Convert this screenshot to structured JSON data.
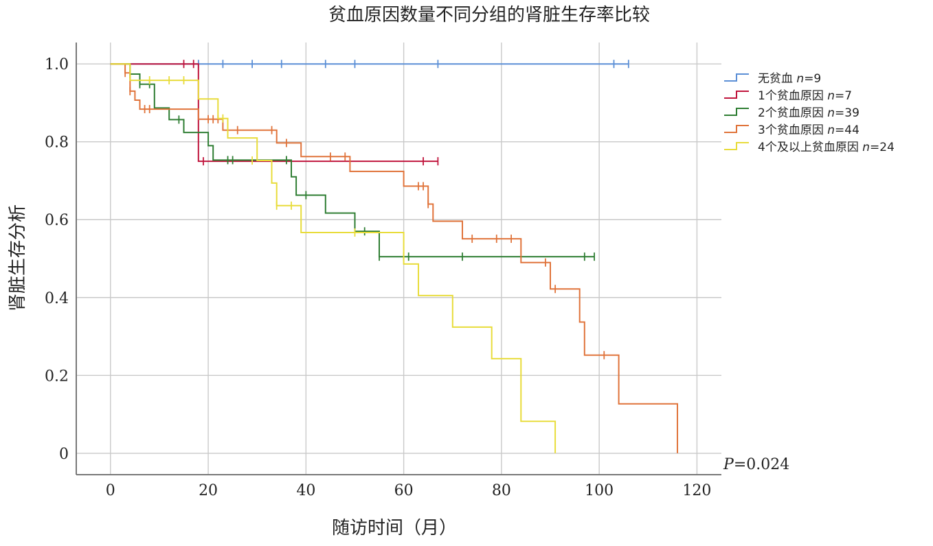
{
  "chart_data": {
    "type": "line",
    "subtype": "kaplan-meier",
    "title": "贫血原因数量不同分组的肾脏生存率比较",
    "xlabel": "随访时间（月）",
    "ylabel": "肾脏生存分析",
    "xlim": [
      -7,
      125
    ],
    "ylim": [
      -0.055,
      1.055
    ],
    "xticks": [
      0,
      20,
      40,
      60,
      80,
      100,
      120
    ],
    "xtick_labels": [
      "0",
      "20",
      "40",
      "60",
      "80",
      "100",
      "120"
    ],
    "yticks": [
      1.0,
      0.8,
      0.6,
      0.4,
      0.2,
      0
    ],
    "ytick_labels": [
      "1.0",
      "0.8",
      "0.6",
      "0.4",
      "0.2",
      "0"
    ],
    "grid": true,
    "legend_position": "right",
    "annotation": {
      "italic": "P",
      "text": "=0.024"
    },
    "series": [
      {
        "name": "无贫血",
        "n_label": "n",
        "n_value": "=9",
        "color": "#5b8fd6",
        "steps": [
          [
            0,
            1.0
          ],
          [
            106,
            1.0
          ]
        ],
        "censors": [
          [
            18,
            1.0
          ],
          [
            23,
            1.0
          ],
          [
            29,
            1.0
          ],
          [
            35,
            1.0
          ],
          [
            44,
            1.0
          ],
          [
            50,
            1.0
          ],
          [
            67,
            1.0
          ],
          [
            103,
            1.0
          ],
          [
            106,
            1.0
          ]
        ]
      },
      {
        "name": "1个贫血原因",
        "n_label": "n",
        "n_value": "=7",
        "color": "#c0143c",
        "steps": [
          [
            0,
            1.0
          ],
          [
            18,
            1.0
          ],
          [
            18,
            0.75
          ],
          [
            67,
            0.75
          ]
        ],
        "censors": [
          [
            15,
            1.0
          ],
          [
            17,
            1.0
          ],
          [
            19,
            0.75
          ],
          [
            64,
            0.75
          ],
          [
            67,
            0.75
          ]
        ]
      },
      {
        "name": "2个贫血原因",
        "n_label": "n",
        "n_value": "=39",
        "color": "#2e7d32",
        "steps": [
          [
            0,
            1.0
          ],
          [
            4,
            1.0
          ],
          [
            4,
            0.974
          ],
          [
            6,
            0.974
          ],
          [
            6,
            0.948
          ],
          [
            9,
            0.948
          ],
          [
            9,
            0.887
          ],
          [
            12,
            0.887
          ],
          [
            12,
            0.857
          ],
          [
            15,
            0.857
          ],
          [
            15,
            0.824
          ],
          [
            20,
            0.824
          ],
          [
            20,
            0.79
          ],
          [
            21,
            0.79
          ],
          [
            21,
            0.753
          ],
          [
            37,
            0.753
          ],
          [
            37,
            0.71
          ],
          [
            38,
            0.71
          ],
          [
            38,
            0.663
          ],
          [
            44,
            0.663
          ],
          [
            44,
            0.617
          ],
          [
            50,
            0.617
          ],
          [
            50,
            0.57
          ],
          [
            55,
            0.57
          ],
          [
            55,
            0.505
          ],
          [
            99,
            0.505
          ]
        ],
        "censors": [
          [
            4,
            0.974
          ],
          [
            6,
            0.948
          ],
          [
            8,
            0.948
          ],
          [
            14,
            0.857
          ],
          [
            24,
            0.753
          ],
          [
            25,
            0.753
          ],
          [
            36,
            0.753
          ],
          [
            40,
            0.663
          ],
          [
            52,
            0.57
          ],
          [
            55,
            0.505
          ],
          [
            60,
            0.505
          ],
          [
            61,
            0.505
          ],
          [
            72,
            0.505
          ],
          [
            97,
            0.505
          ],
          [
            99,
            0.505
          ]
        ]
      },
      {
        "name": "3个贫血原因",
        "n_label": "n",
        "n_value": "=44",
        "color": "#e0733a",
        "steps": [
          [
            0,
            1.0
          ],
          [
            3,
            1.0
          ],
          [
            3,
            0.977
          ],
          [
            4,
            0.977
          ],
          [
            4,
            0.93
          ],
          [
            5,
            0.93
          ],
          [
            5,
            0.907
          ],
          [
            6,
            0.907
          ],
          [
            6,
            0.884
          ],
          [
            18,
            0.884
          ],
          [
            18,
            0.858
          ],
          [
            23,
            0.858
          ],
          [
            23,
            0.83
          ],
          [
            34,
            0.83
          ],
          [
            34,
            0.797
          ],
          [
            39,
            0.797
          ],
          [
            39,
            0.762
          ],
          [
            49,
            0.762
          ],
          [
            49,
            0.724
          ],
          [
            60,
            0.724
          ],
          [
            60,
            0.686
          ],
          [
            65,
            0.686
          ],
          [
            65,
            0.64
          ],
          [
            66,
            0.64
          ],
          [
            66,
            0.596
          ],
          [
            72,
            0.596
          ],
          [
            72,
            0.551
          ],
          [
            84,
            0.551
          ],
          [
            84,
            0.49
          ],
          [
            90,
            0.49
          ],
          [
            90,
            0.422
          ],
          [
            96,
            0.422
          ],
          [
            96,
            0.337
          ],
          [
            97,
            0.337
          ],
          [
            97,
            0.252
          ],
          [
            104,
            0.252
          ],
          [
            104,
            0.127
          ],
          [
            116,
            0.127
          ],
          [
            116,
            0.0
          ]
        ],
        "censors": [
          [
            3,
            0.977
          ],
          [
            4,
            0.93
          ],
          [
            7,
            0.884
          ],
          [
            8,
            0.884
          ],
          [
            20,
            0.858
          ],
          [
            21,
            0.858
          ],
          [
            22,
            0.858
          ],
          [
            26,
            0.83
          ],
          [
            33,
            0.83
          ],
          [
            36,
            0.797
          ],
          [
            45,
            0.762
          ],
          [
            48,
            0.762
          ],
          [
            63,
            0.686
          ],
          [
            64,
            0.686
          ],
          [
            65,
            0.64
          ],
          [
            74,
            0.551
          ],
          [
            79,
            0.551
          ],
          [
            82,
            0.551
          ],
          [
            89,
            0.49
          ],
          [
            91,
            0.422
          ],
          [
            101,
            0.252
          ]
        ]
      },
      {
        "name": "4个及以上贫血原因",
        "n_label": "n",
        "n_value": "=24",
        "color": "#e8dc3a",
        "steps": [
          [
            0,
            1.0
          ],
          [
            4,
            1.0
          ],
          [
            4,
            0.958
          ],
          [
            18,
            0.958
          ],
          [
            18,
            0.91
          ],
          [
            22,
            0.91
          ],
          [
            22,
            0.86
          ],
          [
            24,
            0.86
          ],
          [
            24,
            0.81
          ],
          [
            30,
            0.81
          ],
          [
            30,
            0.752
          ],
          [
            33,
            0.752
          ],
          [
            33,
            0.694
          ],
          [
            34,
            0.694
          ],
          [
            34,
            0.636
          ],
          [
            39,
            0.636
          ],
          [
            39,
            0.567
          ],
          [
            60,
            0.567
          ],
          [
            60,
            0.486
          ],
          [
            63,
            0.486
          ],
          [
            63,
            0.405
          ],
          [
            70,
            0.405
          ],
          [
            70,
            0.324
          ],
          [
            78,
            0.324
          ],
          [
            78,
            0.243
          ],
          [
            84,
            0.243
          ],
          [
            84,
            0.082
          ],
          [
            91,
            0.082
          ],
          [
            91,
            0.0
          ]
        ],
        "censors": [
          [
            8,
            0.958
          ],
          [
            12,
            0.958
          ],
          [
            15,
            0.958
          ],
          [
            23,
            0.86
          ],
          [
            29,
            0.752
          ],
          [
            34,
            0.636
          ],
          [
            37,
            0.636
          ],
          [
            50,
            0.567
          ]
        ]
      }
    ]
  }
}
